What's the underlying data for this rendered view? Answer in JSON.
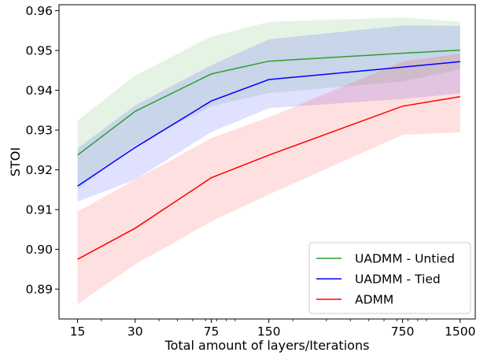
{
  "chart_data": {
    "type": "line",
    "xlabel": "Total amount of layers/Iterations",
    "ylabel": "STOI",
    "xscale": "log",
    "x": [
      15,
      30,
      75,
      150,
      750,
      1500
    ],
    "x_tick_labels": [
      "15",
      "30",
      "75",
      "150",
      "750",
      "1500"
    ],
    "xlim": [
      12,
      1800
    ],
    "ylim": [
      0.8825,
      0.9615
    ],
    "y_ticks": [
      0.89,
      0.9,
      0.91,
      0.92,
      0.93,
      0.94,
      0.95,
      0.96
    ],
    "y_tick_labels": [
      "0.89",
      "0.90",
      "0.91",
      "0.92",
      "0.93",
      "0.94",
      "0.95",
      "0.96"
    ],
    "grid": false,
    "legend_position": "bottom-right",
    "series": [
      {
        "name": "UADMM - Untied",
        "color": "#2ca02c",
        "band_color": "#2ca02c",
        "values": [
          0.9237,
          0.9347,
          0.9441,
          0.9473,
          0.9493,
          0.9501
        ],
        "upper": [
          0.9324,
          0.9437,
          0.9535,
          0.9572,
          0.9583,
          0.9572
        ],
        "lower": [
          0.915,
          0.9262,
          0.936,
          0.9393,
          0.9422,
          0.9452
        ]
      },
      {
        "name": "UADMM - Tied",
        "color": "#0000ff",
        "band_color": "#0000ff",
        "values": [
          0.9159,
          0.9256,
          0.9373,
          0.9427,
          0.9458,
          0.9472
        ],
        "upper": [
          0.9254,
          0.9362,
          0.9463,
          0.9528,
          0.9563,
          0.9562
        ],
        "lower": [
          0.912,
          0.9175,
          0.9295,
          0.9355,
          0.9378,
          0.9392
        ]
      },
      {
        "name": "ADMM",
        "color": "#ff0000",
        "band_color": "#ff0000",
        "values": [
          0.8975,
          0.9053,
          0.918,
          0.9237,
          0.936,
          0.9384
        ],
        "upper": [
          0.9095,
          0.9175,
          0.928,
          0.9332,
          0.9472,
          0.9492
        ],
        "lower": [
          0.8862,
          0.8962,
          0.907,
          0.9138,
          0.9288,
          0.9294
        ]
      }
    ]
  }
}
